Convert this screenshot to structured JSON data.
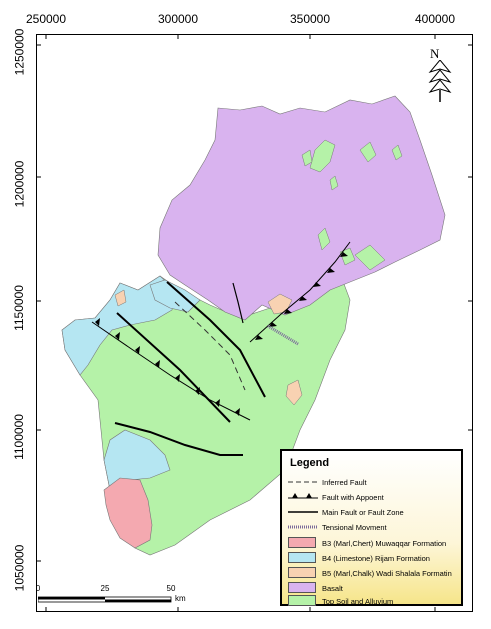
{
  "x_axis_labels": [
    "250000",
    "300000",
    "350000",
    "400000"
  ],
  "y_axis_labels": [
    "1250000",
    "1200000",
    "1150000",
    "1100000",
    "1050000"
  ],
  "north_arrow": {
    "letter": "N",
    "icon": "north-arrow-icon"
  },
  "legend": {
    "title": "Legend",
    "lines": [
      {
        "label": "Inferred Fault",
        "style": "dashed"
      },
      {
        "label": "Fault with Appoent",
        "style": "barbed"
      },
      {
        "label": "Main Fault or Fault Zone",
        "style": "solid"
      },
      {
        "label": "Tensional Movment",
        "style": "hatched"
      }
    ],
    "units": [
      {
        "label": "B3 (Marl,Chert) Muwaqqar Formation",
        "color": "#f4a9b0"
      },
      {
        "label": "B4 (Limestone) Rijam Formation",
        "color": "#b5e6f2"
      },
      {
        "label": "B5 (Marl,Chalk) Wadi Shalala Formatin",
        "color": "#f8d2b2"
      },
      {
        "label": "Basalt",
        "color": "#d9b3ef"
      },
      {
        "label": "Top Soil and Alluvium",
        "color": "#b5f2a8"
      }
    ]
  },
  "scale_bar": {
    "labels": [
      "0",
      "25",
      "50"
    ],
    "unit": "km"
  },
  "colors": {
    "basalt": "#d9b3ef",
    "alluvium": "#b5f2a8",
    "limestone": "#b5e6f2",
    "marl_chert": "#f4a9b0",
    "marl_chalk": "#f8d2b2"
  }
}
